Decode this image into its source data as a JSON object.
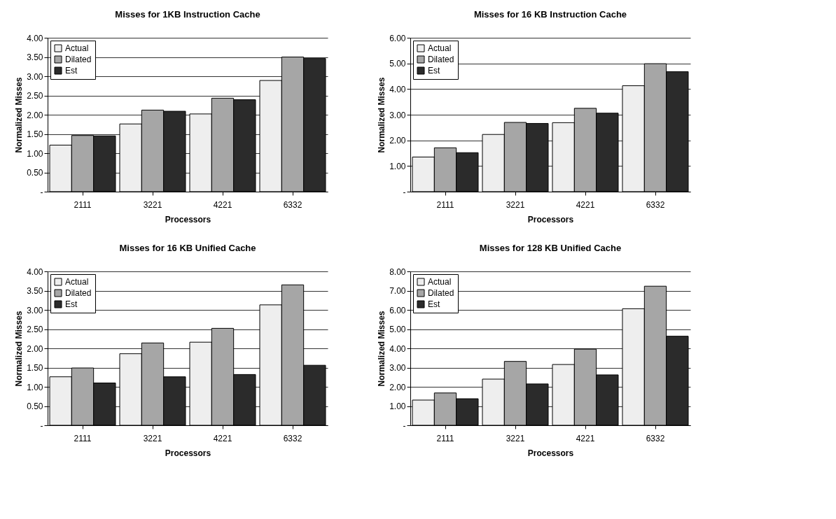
{
  "chart_data": [
    {
      "type": "bar",
      "title": "Misses for 1KB Instruction Cache",
      "xlabel": "Processors",
      "ylabel": "Normalized Misses",
      "categories": [
        "2111",
        "3221",
        "4221",
        "6332"
      ],
      "ylim": [
        0,
        4
      ],
      "yticks": [
        {
          "value": 0,
          "label": "-"
        },
        {
          "value": 0.5,
          "label": "0.50"
        },
        {
          "value": 1,
          "label": "1.00"
        },
        {
          "value": 1.5,
          "label": "1.50"
        },
        {
          "value": 2,
          "label": "2.00"
        },
        {
          "value": 2.5,
          "label": "2.50"
        },
        {
          "value": 3,
          "label": "3.00"
        },
        {
          "value": 3.5,
          "label": "3.50"
        },
        {
          "value": 4,
          "label": "4.00"
        }
      ],
      "grid": "y",
      "legend": "top left",
      "series": [
        {
          "name": "Actual",
          "color": "#eeeeee",
          "values": [
            1.21,
            1.76,
            2.02,
            2.89
          ]
        },
        {
          "name": "Dilated",
          "color": "#a6a6a6",
          "values": [
            1.46,
            2.12,
            2.43,
            3.5
          ]
        },
        {
          "name": "Est",
          "color": "#2b2b2b",
          "values": [
            1.45,
            2.09,
            2.39,
            3.46
          ]
        }
      ]
    },
    {
      "type": "bar",
      "title": "Misses for 16 KB Instruction Cache",
      "xlabel": "Processors",
      "ylabel": "Normalized Misses",
      "categories": [
        "2111",
        "3221",
        "4221",
        "6332"
      ],
      "ylim": [
        0,
        6
      ],
      "yticks": [
        {
          "value": 0,
          "label": "-"
        },
        {
          "value": 1,
          "label": "1.00"
        },
        {
          "value": 2,
          "label": "2.00"
        },
        {
          "value": 3,
          "label": "3.00"
        },
        {
          "value": 4,
          "label": "4.00"
        },
        {
          "value": 5,
          "label": "5.00"
        },
        {
          "value": 6,
          "label": "6.00"
        }
      ],
      "grid": "y",
      "legend": "top left",
      "series": [
        {
          "name": "Actual",
          "color": "#eeeeee",
          "values": [
            1.35,
            2.23,
            2.69,
            4.13
          ]
        },
        {
          "name": "Dilated",
          "color": "#a6a6a6",
          "values": [
            1.71,
            2.7,
            3.25,
            4.99
          ]
        },
        {
          "name": "Est",
          "color": "#2b2b2b",
          "values": [
            1.52,
            2.66,
            3.06,
            4.68
          ]
        }
      ]
    },
    {
      "type": "bar",
      "title": "Misses for 16 KB Unified Cache",
      "xlabel": "Processors",
      "ylabel": "Normalized Misses",
      "categories": [
        "2111",
        "3221",
        "4221",
        "6332"
      ],
      "ylim": [
        0,
        4
      ],
      "yticks": [
        {
          "value": 0,
          "label": "-"
        },
        {
          "value": 0.5,
          "label": "0.50"
        },
        {
          "value": 1,
          "label": "1.00"
        },
        {
          "value": 1.5,
          "label": "1.50"
        },
        {
          "value": 2,
          "label": "2.00"
        },
        {
          "value": 2.5,
          "label": "2.50"
        },
        {
          "value": 3,
          "label": "3.00"
        },
        {
          "value": 3.5,
          "label": "3.50"
        },
        {
          "value": 4,
          "label": "4.00"
        }
      ],
      "grid": "y",
      "legend": "top left",
      "series": [
        {
          "name": "Actual",
          "color": "#eeeeee",
          "values": [
            1.26,
            1.86,
            2.16,
            3.13
          ]
        },
        {
          "name": "Dilated",
          "color": "#a6a6a6",
          "values": [
            1.49,
            2.14,
            2.52,
            3.65
          ]
        },
        {
          "name": "Est",
          "color": "#2b2b2b",
          "values": [
            1.1,
            1.26,
            1.32,
            1.56
          ]
        }
      ]
    },
    {
      "type": "bar",
      "title": "Misses for 128 KB Unified Cache",
      "xlabel": "Processors",
      "ylabel": "Normalized Misses",
      "categories": [
        "2111",
        "3221",
        "4221",
        "6332"
      ],
      "ylim": [
        0,
        8
      ],
      "yticks": [
        {
          "value": 0,
          "label": "-"
        },
        {
          "value": 1,
          "label": "1.00"
        },
        {
          "value": 2,
          "label": "2.00"
        },
        {
          "value": 3,
          "label": "3.00"
        },
        {
          "value": 4,
          "label": "4.00"
        },
        {
          "value": 5,
          "label": "5.00"
        },
        {
          "value": 6,
          "label": "6.00"
        },
        {
          "value": 7,
          "label": "7.00"
        },
        {
          "value": 8,
          "label": "8.00"
        }
      ],
      "grid": "y",
      "legend": "top left",
      "series": [
        {
          "name": "Actual",
          "color": "#eeeeee",
          "values": [
            1.31,
            2.4,
            3.16,
            6.06
          ]
        },
        {
          "name": "Dilated",
          "color": "#a6a6a6",
          "values": [
            1.68,
            3.32,
            3.96,
            7.23
          ]
        },
        {
          "name": "Est",
          "color": "#2b2b2b",
          "values": [
            1.38,
            2.15,
            2.62,
            4.63
          ]
        }
      ]
    }
  ]
}
